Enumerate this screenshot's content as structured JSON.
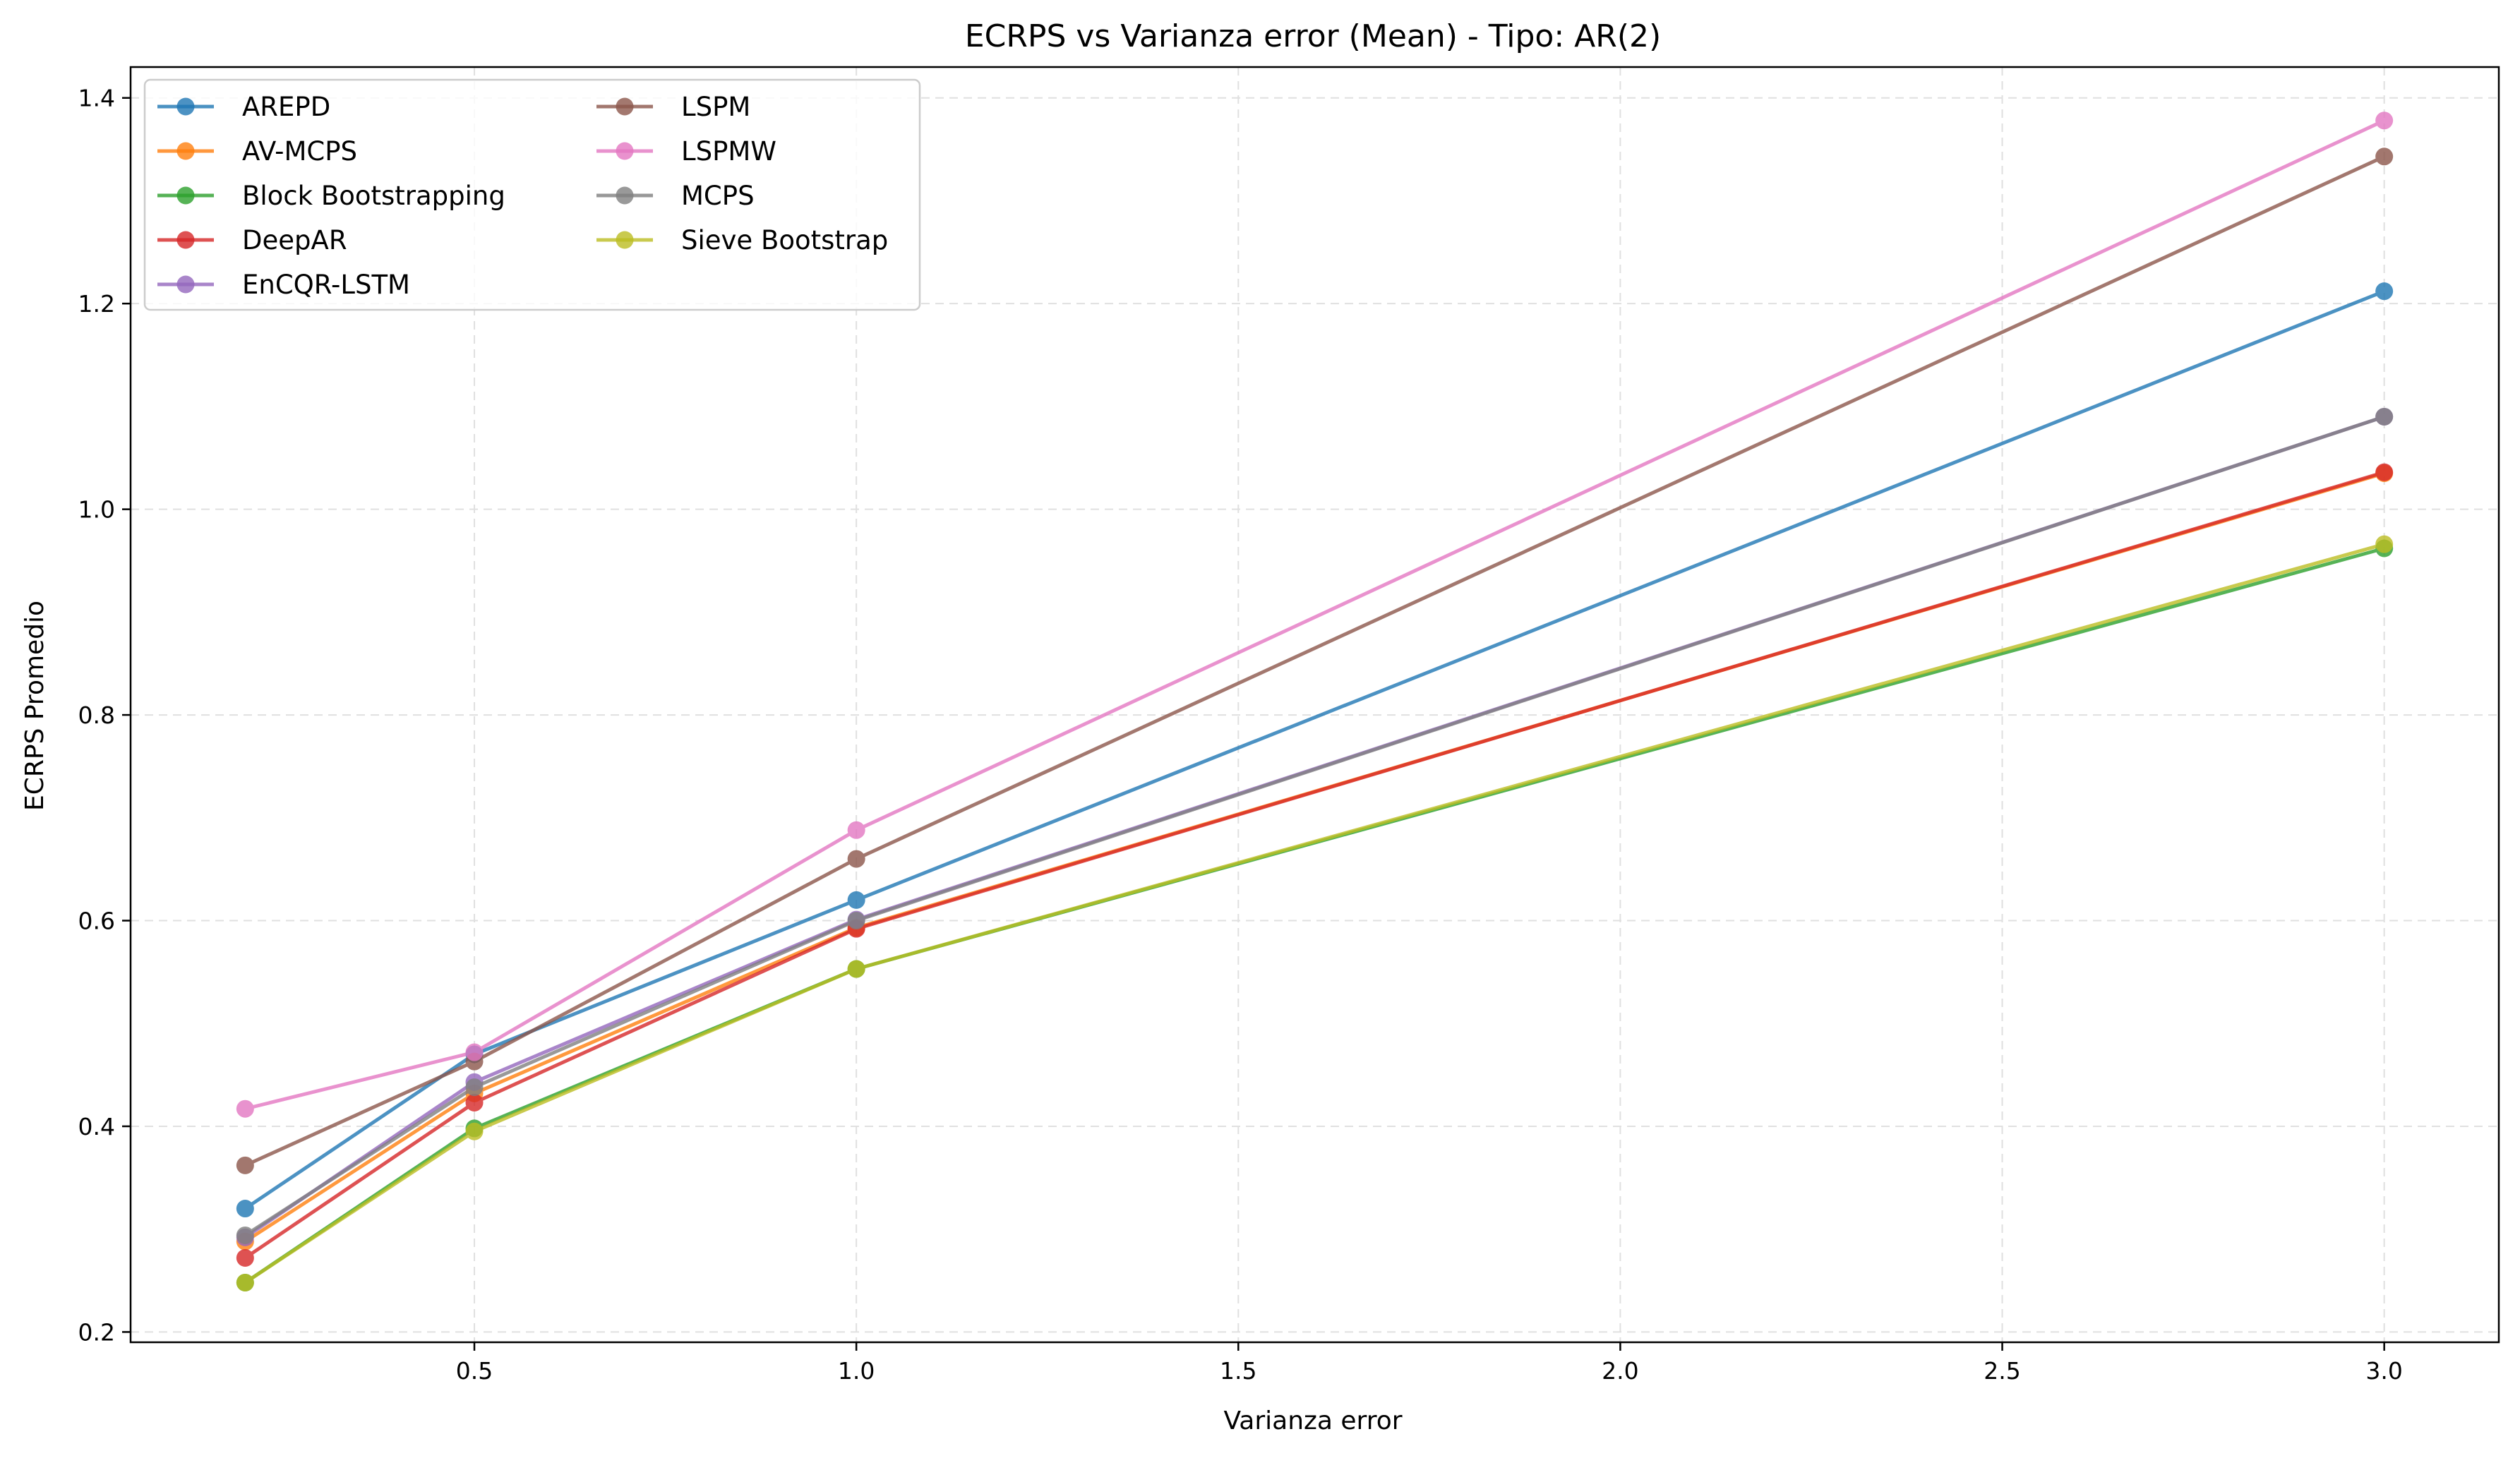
{
  "chart_data": {
    "type": "line",
    "title": "ECRPS vs Varianza error (Mean) - Tipo: AR(2)",
    "xlabel": "Varianza error",
    "ylabel": "ECRPS Promedio",
    "xlim": [
      0.05,
      3.15
    ],
    "ylim": [
      0.19,
      1.43
    ],
    "xticks": [
      0.5,
      1.0,
      1.5,
      2.0,
      2.5,
      3.0
    ],
    "xtick_labels": [
      "0.5",
      "1.0",
      "1.5",
      "2.0",
      "2.5",
      "3.0"
    ],
    "yticks": [
      0.2,
      0.4,
      0.6,
      0.8,
      1.0,
      1.2,
      1.4
    ],
    "ytick_labels": [
      "0.2",
      "0.4",
      "0.6",
      "0.8",
      "1.0",
      "1.2",
      "1.4"
    ],
    "grid": true,
    "legend_position": "top-left",
    "legend_columns": 2,
    "x": [
      0.2,
      0.5,
      1.0,
      3.0
    ],
    "series": [
      {
        "name": "AREPD",
        "color": "#1f77b4",
        "values": [
          0.32,
          0.47,
          0.62,
          1.212
        ]
      },
      {
        "name": "AV-MCPS",
        "color": "#ff7f0e",
        "values": [
          0.288,
          0.432,
          0.593,
          1.035
        ]
      },
      {
        "name": "Block Bootstrapping",
        "color": "#2ca02c",
        "values": [
          0.248,
          0.398,
          0.553,
          0.962
        ]
      },
      {
        "name": "DeepAR",
        "color": "#d62728",
        "values": [
          0.272,
          0.423,
          0.592,
          1.036
        ]
      },
      {
        "name": "EnCQR-LSTM",
        "color": "#9467bd",
        "values": [
          0.292,
          0.443,
          0.601,
          1.09
        ]
      },
      {
        "name": "LSPM",
        "color": "#8c564b",
        "values": [
          0.362,
          0.463,
          0.66,
          1.343
        ]
      },
      {
        "name": "LSPMW",
        "color": "#e377c2",
        "values": [
          0.417,
          0.472,
          0.688,
          1.378
        ]
      },
      {
        "name": "MCPS",
        "color": "#7f7f7f",
        "values": [
          0.294,
          0.438,
          0.6,
          1.09
        ]
      },
      {
        "name": "Sieve Bootstrap",
        "color": "#bcbd22",
        "values": [
          0.248,
          0.395,
          0.553,
          0.966
        ]
      }
    ]
  }
}
